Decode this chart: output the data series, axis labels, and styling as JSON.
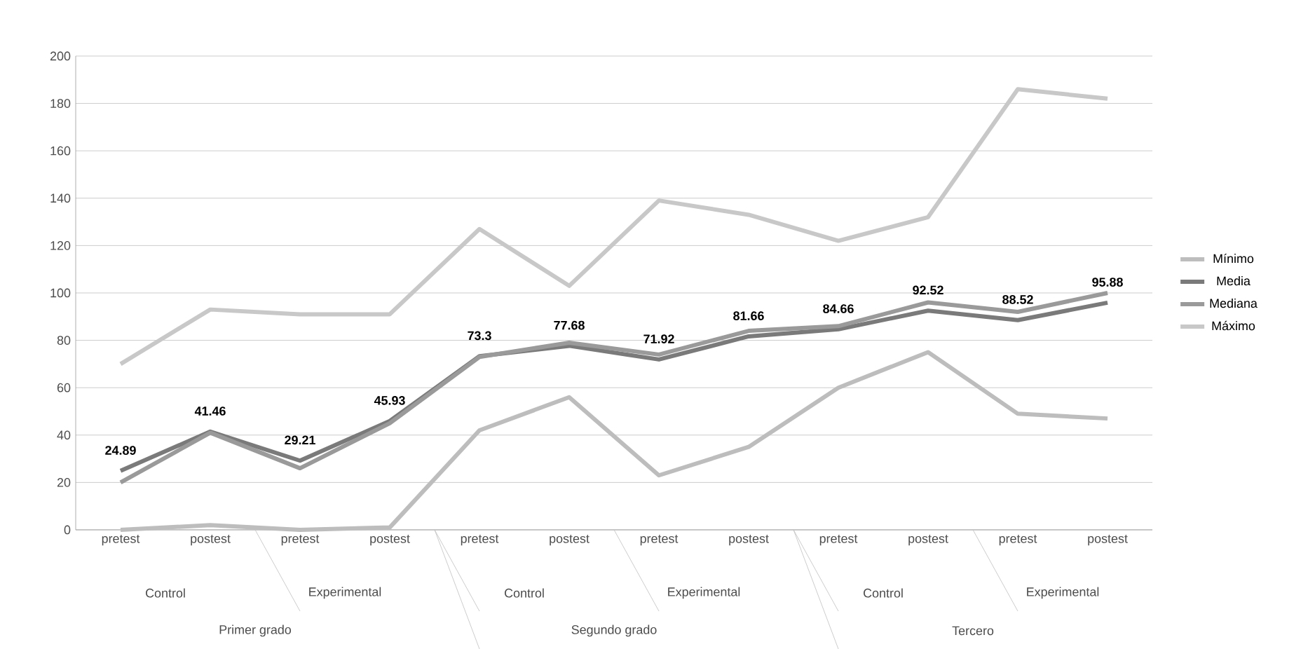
{
  "chart_data": {
    "type": "line",
    "categories": [
      "pretest",
      "postest",
      "pretest",
      "postest",
      "pretest",
      "postest",
      "pretest",
      "postest",
      "pretest",
      "postest",
      "pretest",
      "postest"
    ],
    "series": [
      {
        "name": "Mínimo",
        "color": "#bdbdbd",
        "values": [
          0,
          2,
          0,
          1,
          42,
          56,
          23,
          35,
          60,
          75,
          49,
          47
        ]
      },
      {
        "name": "Media",
        "color": "#7a7a7a",
        "values": [
          24.89,
          41.46,
          29.21,
          45.93,
          73.3,
          77.68,
          71.92,
          81.66,
          84.66,
          92.52,
          88.52,
          95.88
        ],
        "value_labels": [
          "24.89",
          "41.46",
          "29.21",
          "45.93",
          "73.3",
          "77.68",
          "71.92",
          "81.66",
          "84.66",
          "92.52",
          "88.52",
          "95.88"
        ]
      },
      {
        "name": "Mediana",
        "color": "#9a9a9a",
        "values": [
          20,
          41,
          26,
          45,
          73,
          79,
          74,
          84,
          86,
          96,
          92,
          100
        ]
      },
      {
        "name": "Máximo",
        "color": "#c8c8c8",
        "values": [
          70,
          93,
          91,
          91,
          127,
          103,
          139,
          133,
          122,
          132,
          186,
          182
        ]
      }
    ],
    "ylim": [
      0,
      200
    ],
    "yticks": [
      0,
      20,
      40,
      60,
      80,
      100,
      120,
      140,
      160,
      180,
      200
    ],
    "grid": "y",
    "legend": "right",
    "annotations": [
      "Control",
      "Experimental",
      "Control",
      "Experimental",
      "Control",
      "Experimental",
      "Primer grado",
      "Segundo grado",
      "Tercero"
    ]
  }
}
